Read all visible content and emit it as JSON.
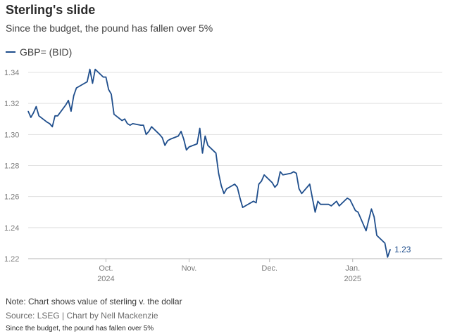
{
  "header": {
    "title": "Sterling's slide",
    "subtitle": "Since the budget, the pound has fallen over 5%"
  },
  "footer": {
    "note": "Note: Chart shows value of sterling v. the dollar",
    "source": "Source: LSEG | Chart by Nell Mackenzie",
    "caption": "Since the budget, the pound has fallen over 5%"
  },
  "colors": {
    "series": "#1f4e8c",
    "grid": "#e1e1e1",
    "ticks": "#7a7a7a"
  },
  "chart_data": {
    "type": "line",
    "title": "Sterling's slide",
    "subtitle": "Since the budget, the pound has fallen over 5%",
    "xlabel": "",
    "ylabel": "",
    "ylim": [
      1.22,
      1.34
    ],
    "xlim": [
      "2024-09-02",
      "2025-01-31"
    ],
    "yticks": [
      1.22,
      1.24,
      1.26,
      1.28,
      1.3,
      1.32,
      1.34
    ],
    "ytick_labels": [
      "1.22",
      "1.24",
      "1.26",
      "1.28",
      "1.30",
      "1.32",
      "1.34"
    ],
    "xticks": [
      {
        "date": "2024-10-01",
        "label": "Oct.",
        "year": "2024"
      },
      {
        "date": "2024-11-01",
        "label": "Nov.",
        "year": ""
      },
      {
        "date": "2024-12-01",
        "label": "Dec.",
        "year": ""
      },
      {
        "date": "2025-01-01",
        "label": "Jan.",
        "year": "2025"
      }
    ],
    "grid": true,
    "legend": "top-left",
    "series": [
      {
        "name": "GBP= (BID)",
        "end_label": "1.23",
        "x": [
          "2024-09-02",
          "2024-09-03",
          "2024-09-04",
          "2024-09-05",
          "2024-09-06",
          "2024-09-09",
          "2024-09-10",
          "2024-09-11",
          "2024-09-12",
          "2024-09-13",
          "2024-09-16",
          "2024-09-17",
          "2024-09-18",
          "2024-09-19",
          "2024-09-20",
          "2024-09-23",
          "2024-09-24",
          "2024-09-25",
          "2024-09-26",
          "2024-09-27",
          "2024-09-30",
          "2024-10-01",
          "2024-10-02",
          "2024-10-03",
          "2024-10-04",
          "2024-10-07",
          "2024-10-08",
          "2024-10-09",
          "2024-10-10",
          "2024-10-11",
          "2024-10-14",
          "2024-10-15",
          "2024-10-16",
          "2024-10-17",
          "2024-10-18",
          "2024-10-21",
          "2024-10-22",
          "2024-10-23",
          "2024-10-24",
          "2024-10-25",
          "2024-10-28",
          "2024-10-29",
          "2024-10-30",
          "2024-10-31",
          "2024-11-01",
          "2024-11-04",
          "2024-11-05",
          "2024-11-06",
          "2024-11-07",
          "2024-11-08",
          "2024-11-11",
          "2024-11-12",
          "2024-11-13",
          "2024-11-14",
          "2024-11-15",
          "2024-11-18",
          "2024-11-19",
          "2024-11-20",
          "2024-11-21",
          "2024-11-22",
          "2024-11-25",
          "2024-11-26",
          "2024-11-27",
          "2024-11-28",
          "2024-11-29",
          "2024-12-02",
          "2024-12-03",
          "2024-12-04",
          "2024-12-05",
          "2024-12-06",
          "2024-12-09",
          "2024-12-10",
          "2024-12-11",
          "2024-12-12",
          "2024-12-13",
          "2024-12-16",
          "2024-12-17",
          "2024-12-18",
          "2024-12-19",
          "2024-12-20",
          "2024-12-23",
          "2024-12-24",
          "2024-12-26",
          "2024-12-27",
          "2024-12-30",
          "2024-12-31",
          "2025-01-02",
          "2025-01-03",
          "2025-01-06",
          "2025-01-07",
          "2025-01-08",
          "2025-01-09",
          "2025-01-10",
          "2025-01-13",
          "2025-01-14",
          "2025-01-15"
        ],
        "values": [
          1.315,
          1.311,
          1.314,
          1.318,
          1.312,
          1.308,
          1.307,
          1.305,
          1.312,
          1.312,
          1.319,
          1.322,
          1.315,
          1.325,
          1.33,
          1.333,
          1.334,
          1.342,
          1.333,
          1.342,
          1.337,
          1.337,
          1.329,
          1.326,
          1.313,
          1.309,
          1.31,
          1.307,
          1.306,
          1.307,
          1.306,
          1.306,
          1.3,
          1.302,
          1.305,
          1.3,
          1.298,
          1.293,
          1.296,
          1.297,
          1.299,
          1.302,
          1.297,
          1.29,
          1.292,
          1.294,
          1.304,
          1.288,
          1.299,
          1.293,
          1.288,
          1.275,
          1.267,
          1.262,
          1.265,
          1.268,
          1.266,
          1.259,
          1.253,
          1.254,
          1.257,
          1.256,
          1.268,
          1.27,
          1.274,
          1.269,
          1.266,
          1.268,
          1.276,
          1.274,
          1.275,
          1.276,
          1.275,
          1.265,
          1.262,
          1.268,
          1.259,
          1.25,
          1.257,
          1.255,
          1.255,
          1.254,
          1.257,
          1.254,
          1.259,
          1.258,
          1.251,
          1.25,
          1.238,
          1.245,
          1.252,
          1.247,
          1.235,
          1.23,
          1.221,
          1.226
        ]
      }
    ]
  }
}
